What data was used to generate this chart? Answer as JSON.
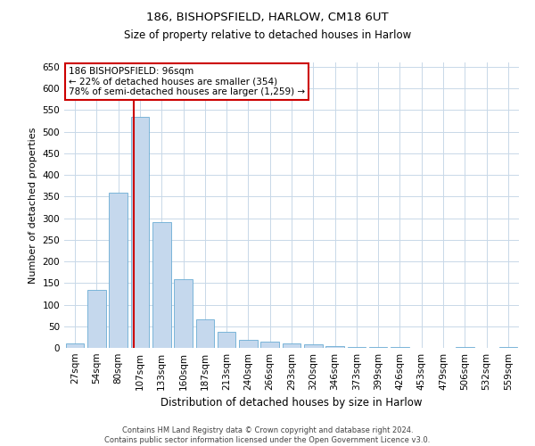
{
  "title1": "186, BISHOPSFIELD, HARLOW, CM18 6UT",
  "title2": "Size of property relative to detached houses in Harlow",
  "xlabel": "Distribution of detached houses by size in Harlow",
  "ylabel": "Number of detached properties",
  "categories": [
    "27sqm",
    "54sqm",
    "80sqm",
    "107sqm",
    "133sqm",
    "160sqm",
    "187sqm",
    "213sqm",
    "240sqm",
    "266sqm",
    "293sqm",
    "320sqm",
    "346sqm",
    "373sqm",
    "399sqm",
    "426sqm",
    "453sqm",
    "479sqm",
    "506sqm",
    "532sqm",
    "559sqm"
  ],
  "values": [
    10,
    135,
    358,
    535,
    290,
    158,
    65,
    38,
    18,
    15,
    10,
    8,
    4,
    3,
    3,
    2,
    1,
    0,
    3,
    1,
    3
  ],
  "bar_color": "#c5d8ed",
  "bar_edge_color": "#6aacd4",
  "background_color": "#ffffff",
  "grid_color": "#c8d8e8",
  "annotation_text_line1": "186 BISHOPSFIELD: 96sqm",
  "annotation_text_line2": "← 22% of detached houses are smaller (354)",
  "annotation_text_line3": "78% of semi-detached houses are larger (1,259) →",
  "annotation_box_color": "#ffffff",
  "annotation_box_edge_color": "#cc0000",
  "vline_x_index": 2.72,
  "vline_color": "#cc0000",
  "footer1": "Contains HM Land Registry data © Crown copyright and database right 2024.",
  "footer2": "Contains public sector information licensed under the Open Government Licence v3.0.",
  "ylim": [
    0,
    660
  ],
  "yticks": [
    0,
    50,
    100,
    150,
    200,
    250,
    300,
    350,
    400,
    450,
    500,
    550,
    600,
    650
  ]
}
